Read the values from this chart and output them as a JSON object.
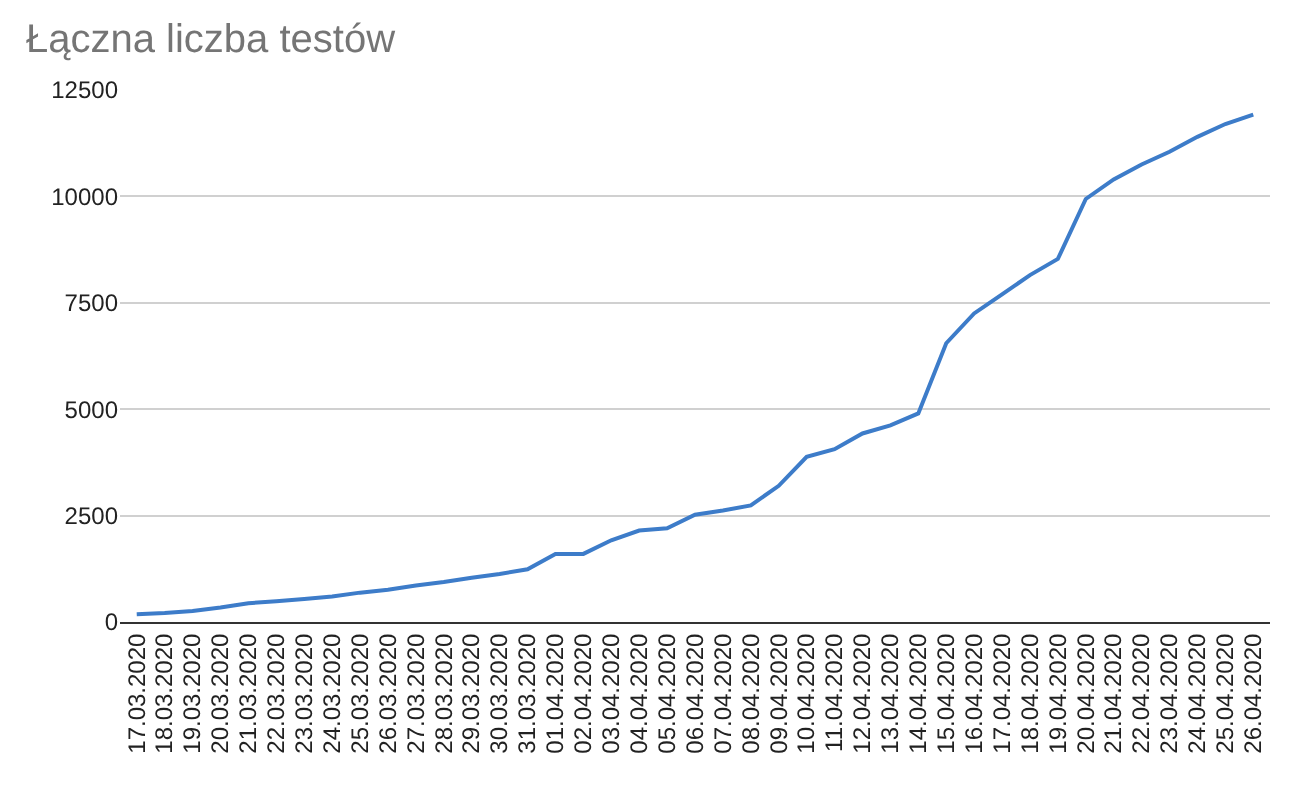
{
  "chart_data": {
    "type": "line",
    "title": "Łączna liczba testów",
    "categories": [
      "17.03.2020",
      "18.03.2020",
      "19.03.2020",
      "20.03.2020",
      "21.03.2020",
      "22.03.2020",
      "23.03.2020",
      "24.03.2020",
      "25.03.2020",
      "26.03.2020",
      "27.03.2020",
      "28.03.2020",
      "29.03.2020",
      "30.03.2020",
      "31.03.2020",
      "01.04.2020",
      "02.04.2020",
      "03.04.2020",
      "04.04.2020",
      "05.04.2020",
      "06.04.2020",
      "07.04.2020",
      "08.04.2020",
      "09.04.2020",
      "10.04.2020",
      "11.04.2020",
      "12.04.2020",
      "13.04.2020",
      "14.04.2020",
      "15.04.2020",
      "16.04.2020",
      "17.04.2020",
      "18.04.2020",
      "19.04.2020",
      "20.04.2020",
      "21.04.2020",
      "22.04.2020",
      "23.04.2020",
      "24.04.2020",
      "25.04.2020",
      "26.04.2020"
    ],
    "series": [
      {
        "color": "#3d7cc9",
        "values": [
          180,
          210,
          260,
          340,
          440,
          490,
          540,
          600,
          690,
          760,
          860,
          940,
          1040,
          1130,
          1240,
          1600,
          1600,
          1920,
          2150,
          2200,
          2520,
          2620,
          2740,
          3200,
          3880,
          4060,
          4430,
          4620,
          4900,
          6550,
          7250,
          7700,
          8150,
          8530,
          9940,
          10400,
          10750,
          11050,
          11400,
          11700,
          11920
        ]
      }
    ],
    "ylim": [
      0,
      12500
    ],
    "yticks": [
      0,
      2500,
      5000,
      7500,
      10000,
      12500
    ],
    "grid": "y",
    "marker": "none",
    "line_style": "solid"
  }
}
